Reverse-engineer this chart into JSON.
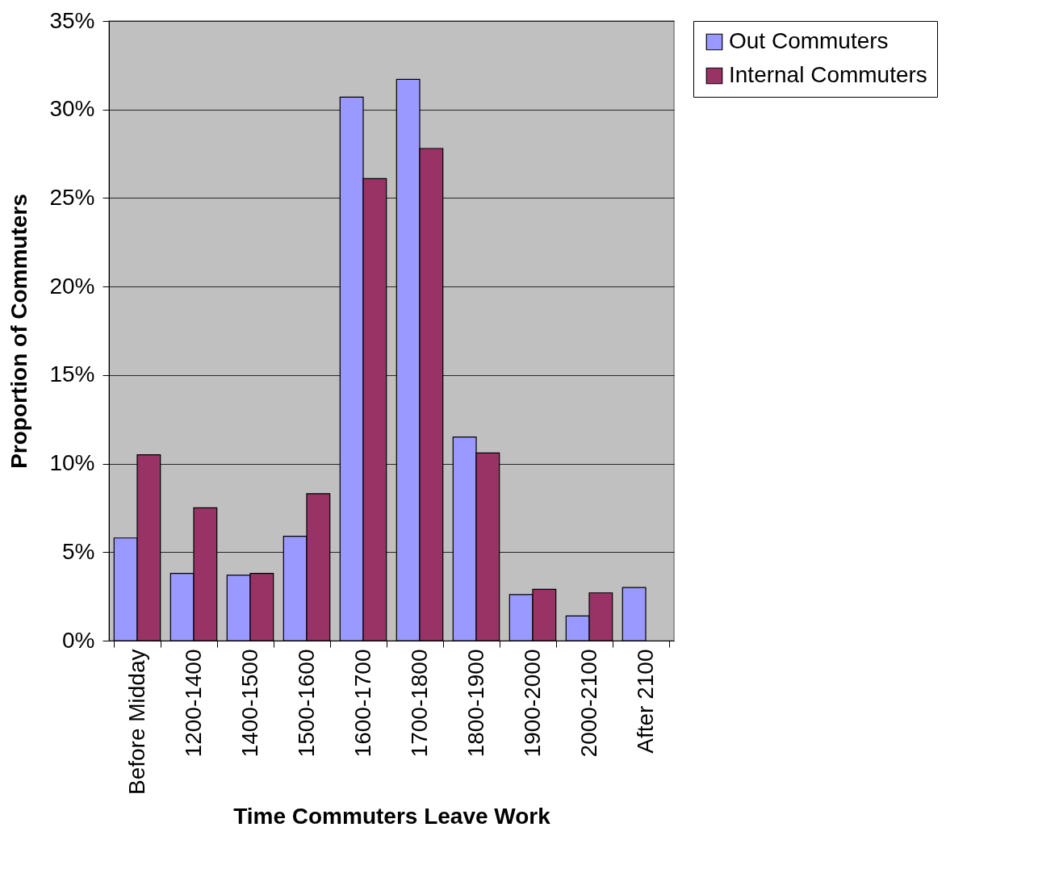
{
  "chart_data": {
    "type": "bar",
    "xlabel": "Time Commuters Leave Work",
    "ylabel": "Proportion of Commuters",
    "categories": [
      "Before Midday",
      "1200-1400",
      "1400-1500",
      "1500-1600",
      "1600-1700",
      "1700-1800",
      "1800-1900",
      "1900-2000",
      "2000-2100",
      "After 2100"
    ],
    "series": [
      {
        "name": "Out Commuters",
        "color": "#9999ff",
        "values": [
          5.8,
          3.8,
          3.7,
          5.9,
          30.7,
          31.7,
          11.5,
          2.6,
          1.4,
          3.0
        ]
      },
      {
        "name": "Internal Commuters",
        "color": "#993366",
        "values": [
          10.5,
          7.5,
          3.8,
          8.3,
          26.1,
          27.8,
          10.6,
          2.9,
          2.7,
          null
        ]
      }
    ],
    "ylim": [
      0,
      35
    ],
    "yticks": [
      {
        "value": 0,
        "label": "0%"
      },
      {
        "value": 5,
        "label": "5%"
      },
      {
        "value": 10,
        "label": "10%"
      },
      {
        "value": 15,
        "label": "15%"
      },
      {
        "value": 20,
        "label": "20%"
      },
      {
        "value": 25,
        "label": "25%"
      },
      {
        "value": 30,
        "label": "30%"
      },
      {
        "value": 35,
        "label": "35%"
      }
    ],
    "grid": "y",
    "legend": "right"
  }
}
